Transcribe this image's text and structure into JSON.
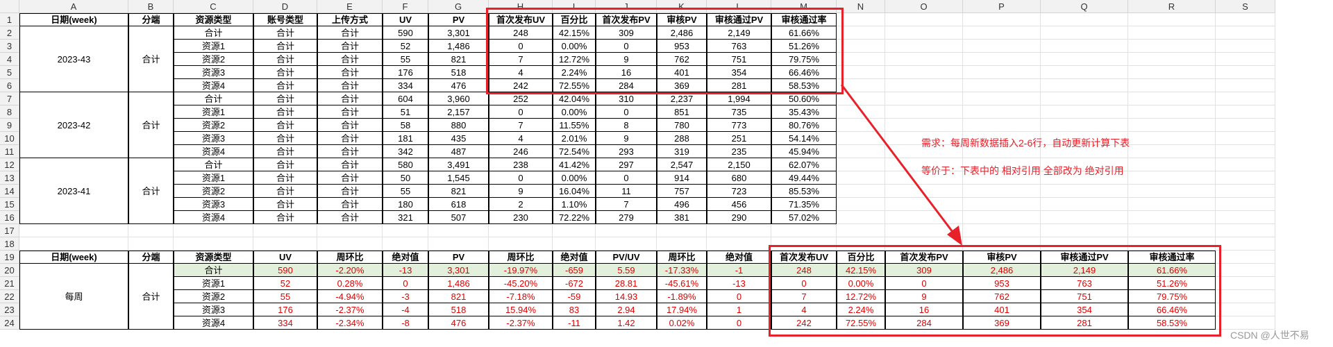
{
  "columns": [
    "A",
    "B",
    "C",
    "D",
    "E",
    "F",
    "G",
    "H",
    "I",
    "J",
    "K",
    "L",
    "M",
    "N",
    "O",
    "P",
    "Q",
    "R",
    "S"
  ],
  "top_table": {
    "headers": [
      "日期(week)",
      "分端",
      "资源类型",
      "账号类型",
      "上传方式",
      "UV",
      "PV",
      "首次发布UV",
      "百分比",
      "首次发布PV",
      "审核PV",
      "审核通过PV",
      "审核通过率"
    ],
    "groups": [
      {
        "date": "2023-43",
        "platform": "合计",
        "rows": [
          [
            "合计",
            "合计",
            "合计",
            "590",
            "3,301",
            "248",
            "42.15%",
            "309",
            "2,486",
            "2,149",
            "61.66%"
          ],
          [
            "资源1",
            "合计",
            "合计",
            "52",
            "1,486",
            "0",
            "0.00%",
            "0",
            "953",
            "763",
            "51.26%"
          ],
          [
            "资源2",
            "合计",
            "合计",
            "55",
            "821",
            "7",
            "12.72%",
            "9",
            "762",
            "751",
            "79.75%"
          ],
          [
            "资源3",
            "合计",
            "合计",
            "176",
            "518",
            "4",
            "2.24%",
            "16",
            "401",
            "354",
            "66.46%"
          ],
          [
            "资源4",
            "合计",
            "合计",
            "334",
            "476",
            "242",
            "72.55%",
            "284",
            "369",
            "281",
            "58.53%"
          ]
        ]
      },
      {
        "date": "2023-42",
        "platform": "合计",
        "rows": [
          [
            "合计",
            "合计",
            "合计",
            "604",
            "3,960",
            "252",
            "42.04%",
            "310",
            "2,237",
            "1,994",
            "50.60%"
          ],
          [
            "资源1",
            "合计",
            "合计",
            "51",
            "2,157",
            "0",
            "0.00%",
            "0",
            "851",
            "735",
            "35.43%"
          ],
          [
            "资源2",
            "合计",
            "合计",
            "58",
            "880",
            "7",
            "11.55%",
            "8",
            "780",
            "773",
            "80.76%"
          ],
          [
            "资源3",
            "合计",
            "合计",
            "181",
            "435",
            "4",
            "2.01%",
            "9",
            "288",
            "251",
            "54.14%"
          ],
          [
            "资源4",
            "合计",
            "合计",
            "342",
            "487",
            "246",
            "72.54%",
            "293",
            "319",
            "235",
            "45.94%"
          ]
        ]
      },
      {
        "date": "2023-41",
        "platform": "合计",
        "rows": [
          [
            "合计",
            "合计",
            "合计",
            "580",
            "3,491",
            "238",
            "41.42%",
            "297",
            "2,547",
            "2,150",
            "62.07%"
          ],
          [
            "资源1",
            "合计",
            "合计",
            "50",
            "1,545",
            "0",
            "0.00%",
            "0",
            "914",
            "680",
            "49.44%"
          ],
          [
            "资源2",
            "合计",
            "合计",
            "55",
            "821",
            "9",
            "16.04%",
            "11",
            "757",
            "723",
            "85.53%"
          ],
          [
            "资源3",
            "合计",
            "合计",
            "180",
            "618",
            "2",
            "1.10%",
            "7",
            "496",
            "456",
            "71.35%"
          ],
          [
            "资源4",
            "合计",
            "合计",
            "321",
            "507",
            "230",
            "72.22%",
            "279",
            "381",
            "290",
            "57.02%"
          ]
        ]
      }
    ]
  },
  "bottom_table": {
    "headers": [
      "日期(week)",
      "分端",
      "资源类型",
      "UV",
      "周环比",
      "绝对值",
      "PV",
      "周环比",
      "绝对值",
      "PV/UV",
      "周环比",
      "绝对值",
      "首次发布UV",
      "百分比",
      "首次发布PV",
      "审核PV",
      "审核通过PV",
      "审核通过率"
    ],
    "date": "每周",
    "platform": "合计",
    "rows": [
      [
        "合计",
        "590",
        "-2.20%",
        "-13",
        "3,301",
        "-19.97%",
        "-659",
        "5.59",
        "-17.33%",
        "-1",
        "248",
        "42.15%",
        "309",
        "2,486",
        "2,149",
        "61.66%"
      ],
      [
        "资源1",
        "52",
        "0.28%",
        "0",
        "1,486",
        "-45.20%",
        "-672",
        "28.81",
        "-45.61%",
        "-13",
        "0",
        "0.00%",
        "0",
        "953",
        "763",
        "51.26%"
      ],
      [
        "资源2",
        "55",
        "-4.94%",
        "-3",
        "821",
        "-7.18%",
        "-59",
        "14.93",
        "-1.89%",
        "0",
        "7",
        "12.72%",
        "9",
        "762",
        "751",
        "79.75%"
      ],
      [
        "资源3",
        "176",
        "-2.37%",
        "-4",
        "518",
        "15.94%",
        "83",
        "2.94",
        "17.94%",
        "1",
        "4",
        "2.24%",
        "16",
        "401",
        "354",
        "66.46%"
      ],
      [
        "资源4",
        "334",
        "-2.34%",
        "-8",
        "476",
        "-2.37%",
        "-11",
        "1.42",
        "0.02%",
        "0",
        "242",
        "72.55%",
        "284",
        "369",
        "281",
        "58.53%"
      ]
    ]
  },
  "annotations": {
    "note1": "需求：每周新数据插入2-6行，自动更新计算下表",
    "note2": "等价于：下表中的 相对引用 全部改为 绝对引用",
    "watermark": "CSDN @人世不易",
    "color": "#e8202a"
  }
}
